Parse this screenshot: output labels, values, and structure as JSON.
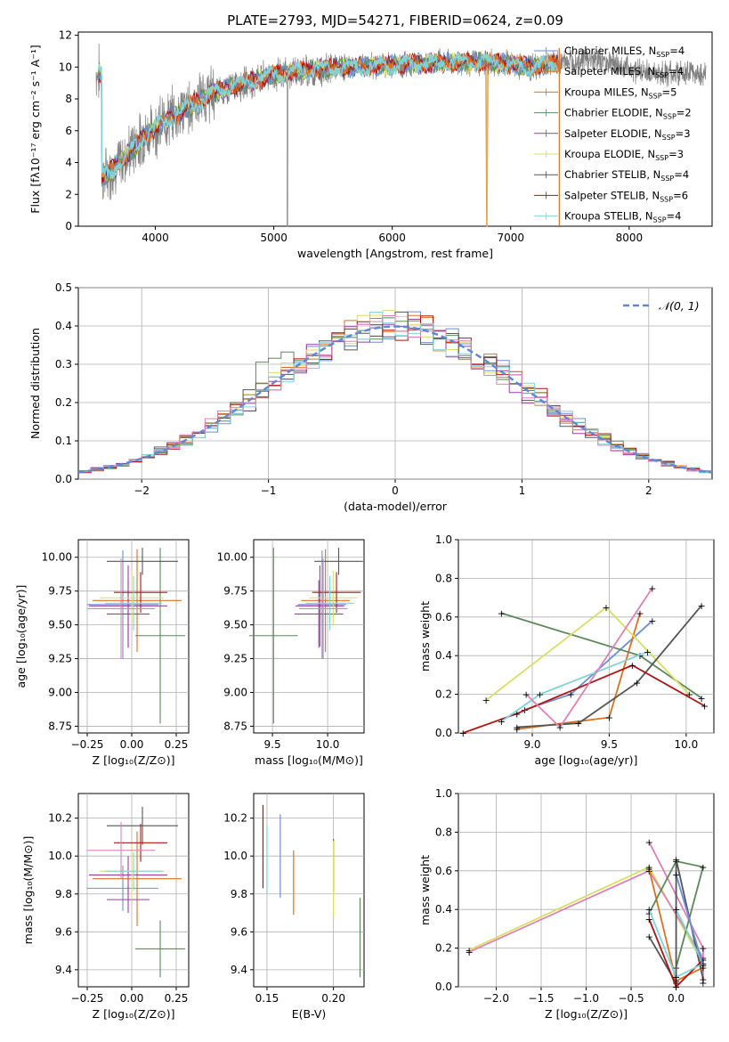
{
  "title": "PLATE=2793, MJD=54271, FIBERID=0624, z=0.09",
  "colors": [
    "#6b8fd6",
    "#e0701f",
    "#a03ea0",
    "#5a8a5a",
    "#9a3fa8",
    "#d8e060",
    "#555555",
    "#b01515",
    "#7fd4d8",
    "#e080b8"
  ],
  "spectrum": {
    "xlabel": "wavelength [Angstrom, rest frame]",
    "ylabel": "Flux [fλ10⁻¹⁷ erg cm⁻² s⁻¹ A⁻¹]",
    "xticks": [
      "4000",
      "5000",
      "6000",
      "7000",
      "8000"
    ],
    "yticks": [
      "0",
      "2",
      "4",
      "6",
      "8",
      "10",
      "12"
    ],
    "xlim": [
      3350,
      8700
    ],
    "ylim": [
      0,
      12.2
    ],
    "legend": [
      {
        "label": "Chabrier MILES, N",
        "sub": "SSP",
        "suffix": "=4"
      },
      {
        "label": "Salpeter MILES, N",
        "sub": "SSP",
        "suffix": "=4"
      },
      {
        "label": "Kroupa MILES, N",
        "sub": "SSP",
        "suffix": "=5"
      },
      {
        "label": "Chabrier ELODIE, N",
        "sub": "SSP",
        "suffix": "=2"
      },
      {
        "label": "Salpeter ELODIE, N",
        "sub": "SSP",
        "suffix": "=3"
      },
      {
        "label": "Kroupa ELODIE, N",
        "sub": "SSP",
        "suffix": "=3"
      },
      {
        "label": "Chabrier STELIB, N",
        "sub": "SSP",
        "suffix": "=4"
      },
      {
        "label": "Salpeter STELIB, N",
        "sub": "SSP",
        "suffix": "=6"
      },
      {
        "label": "Kroupa STELIB, N",
        "sub": "SSP",
        "suffix": "=4"
      }
    ],
    "legend_colors": [
      "#6b8fd6",
      "#e0701f",
      "#e0701f",
      "#5a8a5a",
      "#9a3fa8",
      "#d8e060",
      "#555555",
      "#b01515",
      "#7fd4d8"
    ]
  },
  "residuals": {
    "xlabel": "(data-model)/error",
    "ylabel": "Normed distribution",
    "xticks": [
      "−2",
      "−1",
      "0",
      "1",
      "2"
    ],
    "yticks": [
      "0.0",
      "0.1",
      "0.2",
      "0.3",
      "0.4",
      "0.5"
    ],
    "xlim": [
      -2.5,
      2.5
    ],
    "ylim": [
      0,
      0.5
    ],
    "legend": "𝒩(0, 1)"
  },
  "panels": {
    "age_z": {
      "xlabel": "Z [log₁₀(Z/Z⊙)]",
      "ylabel": "age  [log₁₀(age/yr)]",
      "xticks": [
        "−0.25",
        "0.00",
        "0.25"
      ],
      "yticks": [
        "8.75",
        "9.00",
        "9.25",
        "9.50",
        "9.75",
        "10.00"
      ]
    },
    "age_mass": {
      "xlabel": "mass [log₁₀(M/M⊙)]",
      "xticks": [
        "9.5",
        "10.0"
      ],
      "yticks": [
        "8.75",
        "9.00",
        "9.25",
        "9.50",
        "9.75",
        "10.00"
      ]
    },
    "weight_age": {
      "xlabel": "age  [log₁₀(age/yr)]",
      "ylabel": "mass weight",
      "xticks": [
        "9.0",
        "9.5",
        "10.0"
      ],
      "yticks": [
        "0.0",
        "0.2",
        "0.4",
        "0.6",
        "0.8",
        "1.0"
      ]
    },
    "mass_z": {
      "xlabel": "Z [log₁₀(Z/Z⊙)]",
      "ylabel": "mass [log₁₀(M/M⊙)]",
      "xticks": [
        "−0.25",
        "0.00",
        "0.25"
      ],
      "yticks": [
        "9.4",
        "9.6",
        "9.8",
        "10.0",
        "10.2"
      ]
    },
    "mass_ebv": {
      "xlabel": "E(B-V)",
      "xticks": [
        "0.15",
        "0.20"
      ],
      "yticks": [
        "9.4",
        "9.6",
        "9.8",
        "10.0",
        "10.2"
      ]
    },
    "weight_z": {
      "xlabel": "Z [log₁₀(Z/Z⊙)]",
      "ylabel": "mass weight",
      "xticks": [
        "−2.0",
        "−1.5",
        "−1.0",
        "−0.5",
        "0.0"
      ],
      "yticks": [
        "0.0",
        "0.2",
        "0.4",
        "0.6",
        "0.8",
        "1.0"
      ]
    }
  },
  "chart_data": [
    {
      "type": "line",
      "title": "PLATE=2793, MJD=54271, FIBERID=0624, z=0.09",
      "xlabel": "wavelength [Angstrom, rest frame]",
      "ylabel": "Flux [fλ10⁻¹⁷ erg cm⁻² s⁻¹ A⁻¹]",
      "xlim": [
        3350,
        8700
      ],
      "ylim": [
        0,
        12.2
      ],
      "continuum": {
        "x": [
          3550,
          3700,
          3900,
          4100,
          4300,
          4500,
          4800,
          5000,
          5300,
          5600,
          5900,
          6200,
          6500,
          6800,
          7000,
          7200,
          7400,
          7600,
          7800,
          8000,
          8200
        ],
        "y": [
          3.0,
          4.0,
          5.6,
          6.7,
          7.6,
          8.4,
          9.1,
          9.5,
          9.8,
          10.0,
          10.1,
          10.2,
          10.3,
          10.3,
          10.2,
          10.0,
          10.3,
          10.5,
          10.4,
          9.9,
          9.6
        ]
      }
    },
    {
      "type": "bar",
      "xlabel": "(data-model)/error",
      "ylabel": "Normed distribution",
      "xlim": [
        -2.5,
        2.5
      ],
      "ylim": [
        0,
        0.5
      ],
      "bin_width": 0.1,
      "gaussian": {
        "name": "𝒩(0, 1)",
        "mu": 0,
        "sigma": 1
      }
    },
    {
      "type": "scatter",
      "name": "age vs Z",
      "points": [
        {
          "z": -0.05,
          "zerr": 0.2,
          "age": 9.65,
          "aerr": 0.4
        },
        {
          "z": 0.03,
          "zerr": 0.25,
          "age": 9.68,
          "aerr": 0.38
        },
        {
          "z": -0.02,
          "zerr": 0.22,
          "age": 9.64,
          "aerr": 0.3
        },
        {
          "z": 0.16,
          "zerr": 0.14,
          "age": 9.42,
          "aerr": 0.65
        },
        {
          "z": -0.02,
          "zerr": 0.12,
          "age": 9.58,
          "aerr": 0.25
        },
        {
          "z": 0.0,
          "zerr": 0.18,
          "age": 9.7,
          "aerr": 0.2
        },
        {
          "z": 0.06,
          "zerr": 0.2,
          "age": 9.97,
          "aerr": 0.1
        },
        {
          "z": 0.05,
          "zerr": 0.15,
          "age": 9.74,
          "aerr": 0.15
        },
        {
          "z": 0.01,
          "zerr": 0.16,
          "age": 9.66,
          "aerr": 0.2
        },
        {
          "z": -0.06,
          "zerr": 0.19,
          "age": 9.62,
          "aerr": 0.37
        }
      ]
    },
    {
      "type": "line",
      "name": "mass weight vs age",
      "series": [
        {
          "x": [
            8.95,
            9.25,
            9.78
          ],
          "y": [
            0.12,
            0.2,
            0.58
          ]
        },
        {
          "x": [
            8.9,
            9.5,
            9.7
          ],
          "y": [
            0.02,
            0.08,
            0.62
          ]
        },
        {
          "x": [
            8.8,
            9.7,
            10.1
          ],
          "y": [
            0.62,
            0.4,
            0.18
          ]
        },
        {
          "x": [
            8.7,
            9.48,
            10.02
          ],
          "y": [
            0.17,
            0.65,
            0.2
          ]
        },
        {
          "x": [
            8.9,
            9.3,
            9.68,
            10.1
          ],
          "y": [
            0.03,
            0.05,
            0.26,
            0.66
          ]
        },
        {
          "x": [
            8.55,
            8.9,
            9.65,
            10.12
          ],
          "y": [
            0.0,
            0.1,
            0.35,
            0.14
          ]
        },
        {
          "x": [
            8.8,
            9.05,
            9.75
          ],
          "y": [
            0.06,
            0.2,
            0.42
          ]
        },
        {
          "x": [
            8.96,
            9.18,
            9.78
          ],
          "y": [
            0.2,
            0.03,
            0.75
          ]
        }
      ]
    },
    {
      "type": "scatter",
      "name": "mass vs E(B-V)",
      "points": [
        {
          "ebv": 0.147,
          "m": 10.05,
          "merr": 0.22
        },
        {
          "ebv": 0.15,
          "m": 9.98,
          "merr": 0.18
        },
        {
          "ebv": 0.16,
          "m": 10.0,
          "merr": 0.22
        },
        {
          "ebv": 0.17,
          "m": 9.86,
          "merr": 0.17
        },
        {
          "ebv": 0.2,
          "m": 9.95,
          "merr": 0.14
        },
        {
          "ebv": 0.2,
          "m": 9.88,
          "merr": 0.2
        },
        {
          "ebv": 0.22,
          "m": 9.57,
          "merr": 0.21
        }
      ]
    }
  ]
}
